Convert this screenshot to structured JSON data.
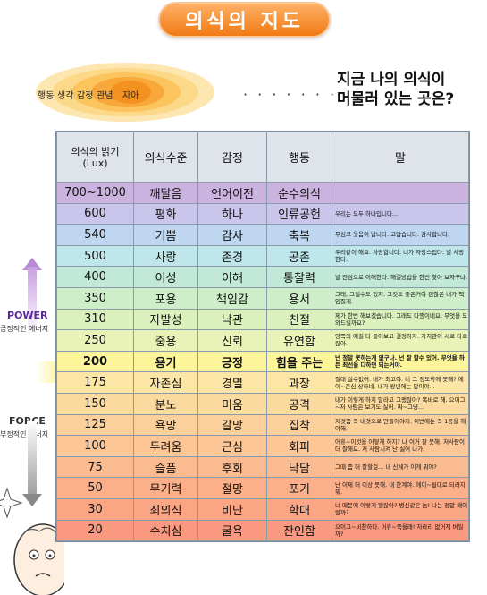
{
  "title": "의식의 지도",
  "rings": {
    "labels": [
      "행동",
      "생각",
      "감정",
      "관념",
      "자아"
    ]
  },
  "dots": "· · · · · · ·",
  "question": {
    "line1": "지금 나의 의식이",
    "line2": "머물러 있는 곳은?"
  },
  "axis": {
    "power": "POWER",
    "power_sub": "긍정적인 에너지",
    "force": "FORCE",
    "force_sub": "부정적인 에너지"
  },
  "table": {
    "headers": [
      "의식의 밝기",
      "(Lux)",
      "의식수준",
      "감정",
      "행동",
      "말"
    ],
    "rows": [
      {
        "lux": "700~1000",
        "level": "깨달음",
        "emotion": "언어이전",
        "action": "순수의식",
        "say": "",
        "color": "#cbb3e0"
      },
      {
        "lux": "600",
        "level": "평화",
        "emotion": "하나",
        "action": "인류공헌",
        "say": "우리는 모두 하나입니다...",
        "color": "#c9c5eb"
      },
      {
        "lux": "540",
        "level": "기쁨",
        "emotion": "감사",
        "action": "축복",
        "say": "무심코 웃음이 납니다. 고맙습니다. 감사합니다.",
        "color": "#bfd6f0"
      },
      {
        "lux": "500",
        "level": "사랑",
        "emotion": "존경",
        "action": "공존",
        "say": "우리같이 해요. 사랑합니다. 너가 자랑스럽다. 널 사랑한다.",
        "color": "#bfe6ea"
      },
      {
        "lux": "400",
        "level": "이성",
        "emotion": "이해",
        "action": "통찰력",
        "say": "널 진심으로 이해한다. 해결방법을 한번 찾아 보자꾸나.",
        "color": "#c2e8d8"
      },
      {
        "lux": "350",
        "level": "포용",
        "emotion": "책임감",
        "action": "용서",
        "say": "그래, 그럴수도 있지. 그것도 좋은거야 괜찮은 내가 책임질게.",
        "color": "#cdeec8"
      },
      {
        "lux": "310",
        "level": "자발성",
        "emotion": "낙관",
        "action": "친절",
        "say": "제가 한번 해보겠습니다. 그래도 다행이네요. 무엇을 도와드릴까요?",
        "color": "#daf0bd"
      },
      {
        "lux": "250",
        "level": "중용",
        "emotion": "신뢰",
        "action": "유연함",
        "say": "양쪽의 얘길 다 들어보고 결정하자. 가치관이 서로 다르잖아.",
        "color": "#e9f3b8"
      },
      {
        "lux": "200",
        "level": "용기",
        "emotion": "긍정",
        "action": "힘을 주는",
        "say": "넌 정말 못하는게 없구나. 넌 잘 할수 있어. 무엇을 하든 최선을 다하면 되는거야.",
        "color": "#fdf59a"
      },
      {
        "lux": "175",
        "level": "자존심",
        "emotion": "경멸",
        "action": "과장",
        "say": "절대 실수없어. 내가 최고야. 너 그 정도밖에 못해? 에이~존심 상하네. 내가 왕년에는 말이야...",
        "color": "#fbe6a8"
      },
      {
        "lux": "150",
        "level": "분노",
        "emotion": "미움",
        "action": "공격",
        "say": "내가 이렇게 하지 말라고 그랬잖아? 똑바로 해. 으이그~저 사람은 보기도 싫어. 짜~그냥...",
        "color": "#fbdaa0"
      },
      {
        "lux": "125",
        "level": "욕망",
        "emotion": "갈망",
        "action": "집착",
        "say": "저것좀 꼭 내것으로 만들어야지. 이번에는 꼭 1등을 해야해.",
        "color": "#fcd09a"
      },
      {
        "lux": "100",
        "level": "두려움",
        "emotion": "근심",
        "action": "회피",
        "say": "어휴~이것을 어떻게 하지? 나 이거 잘 못해. 저사람이 더 잘해요. 저 사람시켜 난 싫어 나가.",
        "color": "#fcc696"
      },
      {
        "lux": "75",
        "level": "슬픔",
        "emotion": "후회",
        "action": "낙담",
        "say": "그때 좀 더 잘할걸... 내 신세가 이게 뭐야?",
        "color": "#fbbb90"
      },
      {
        "lux": "50",
        "level": "무기력",
        "emotion": "절망",
        "action": "포기",
        "say": "난 이제 더 이상 못해. 내 한계야. 에이~될대로 되라지 뭐.",
        "color": "#fbb08a"
      },
      {
        "lux": "30",
        "level": "죄의식",
        "emotion": "비난",
        "action": "학대",
        "say": "너 때문에 이렇게 됐잖아? 병신같은 놈! 나는 정말 왜이럴까?",
        "color": "#faa584"
      },
      {
        "lux": "20",
        "level": "수치심",
        "emotion": "굴욕",
        "action": "잔인함",
        "say": "으이그~비참하다. 어휴~죽을래! 차라리 없어져 버릴까?",
        "color": "#f99a80"
      }
    ]
  }
}
